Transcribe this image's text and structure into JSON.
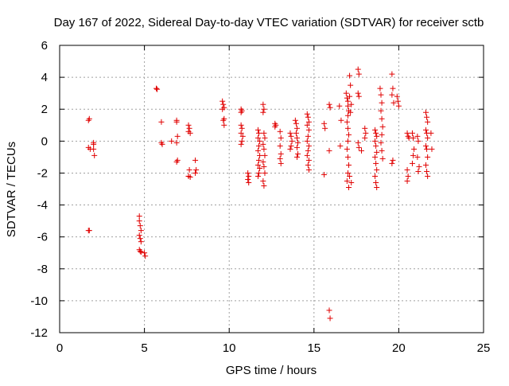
{
  "chart_data": {
    "type": "scatter",
    "title": "Day 167 of 2022, Sidereal Day-to-day VTEC variation (SDTVAR) for receiver sctb",
    "xlabel": "GPS time / hours",
    "ylabel": "SDTVAR / TECUs",
    "xlim": [
      0,
      25
    ],
    "ylim": [
      -12,
      6
    ],
    "xticks": [
      0,
      5,
      10,
      15,
      20,
      25
    ],
    "yticks": [
      -12,
      -10,
      -8,
      -6,
      -4,
      -2,
      0,
      2,
      4,
      6
    ],
    "xtick_labels": [
      "0",
      "5",
      "10",
      "15",
      "20",
      "25"
    ],
    "ytick_labels": [
      "-12",
      "-10",
      "-8",
      "-6",
      "-4",
      "-2",
      "0",
      "2",
      "4",
      "6"
    ],
    "grid": true,
    "marker": "+",
    "color": "#e00000",
    "series": [
      {
        "name": "SDTVAR",
        "points": [
          [
            1.7,
            1.3
          ],
          [
            1.75,
            1.4
          ],
          [
            1.7,
            -0.4
          ],
          [
            1.8,
            -0.5
          ],
          [
            1.75,
            -5.6
          ],
          [
            1.7,
            -5.6
          ],
          [
            2.0,
            -0.2
          ],
          [
            2.0,
            -0.5
          ],
          [
            2.05,
            -0.9
          ],
          [
            2.0,
            -0.1
          ],
          [
            4.7,
            -4.7
          ],
          [
            4.7,
            -5.0
          ],
          [
            4.75,
            -5.3
          ],
          [
            4.8,
            -5.6
          ],
          [
            4.7,
            -5.9
          ],
          [
            4.75,
            -6.1
          ],
          [
            4.8,
            -6.3
          ],
          [
            4.7,
            -6.8
          ],
          [
            4.75,
            -6.9
          ],
          [
            4.8,
            -6.95
          ],
          [
            5.0,
            -7.0
          ],
          [
            5.05,
            -7.2
          ],
          [
            5.7,
            3.3
          ],
          [
            5.75,
            3.25
          ],
          [
            6.0,
            1.2
          ],
          [
            6.0,
            -0.1
          ],
          [
            6.05,
            -0.2
          ],
          [
            6.6,
            0.0
          ],
          [
            6.9,
            1.2
          ],
          [
            6.9,
            1.3
          ],
          [
            6.95,
            0.3
          ],
          [
            6.9,
            -0.1
          ],
          [
            6.95,
            -1.2
          ],
          [
            6.9,
            -1.3
          ],
          [
            7.6,
            1.0
          ],
          [
            7.65,
            0.8
          ],
          [
            7.6,
            0.6
          ],
          [
            7.7,
            0.5
          ],
          [
            7.65,
            -1.8
          ],
          [
            7.6,
            -2.2
          ],
          [
            7.7,
            -2.25
          ],
          [
            7.6,
            -2.2
          ],
          [
            8.0,
            -1.2
          ],
          [
            8.05,
            -1.8
          ],
          [
            8.0,
            -2.0
          ],
          [
            9.6,
            2.5
          ],
          [
            9.65,
            2.3
          ],
          [
            9.7,
            2.1
          ],
          [
            9.6,
            2.0
          ],
          [
            9.7,
            1.4
          ],
          [
            9.65,
            1.3
          ],
          [
            9.7,
            1.0
          ],
          [
            10.7,
            2.0
          ],
          [
            10.75,
            1.9
          ],
          [
            10.7,
            1.8
          ],
          [
            10.7,
            1.0
          ],
          [
            10.75,
            0.8
          ],
          [
            10.7,
            0.5
          ],
          [
            10.8,
            0.3
          ],
          [
            10.75,
            0.0
          ],
          [
            10.7,
            -0.2
          ],
          [
            11.1,
            -2.0
          ],
          [
            11.15,
            -2.2
          ],
          [
            11.1,
            -2.4
          ],
          [
            11.15,
            -2.6
          ],
          [
            11.7,
            0.7
          ],
          [
            11.75,
            0.5
          ],
          [
            11.7,
            0.2
          ],
          [
            11.8,
            0.0
          ],
          [
            11.75,
            -0.3
          ],
          [
            11.7,
            -0.6
          ],
          [
            11.8,
            -0.9
          ],
          [
            11.75,
            -1.2
          ],
          [
            11.7,
            -1.5
          ],
          [
            11.8,
            -1.7
          ],
          [
            11.75,
            -2.0
          ],
          [
            11.7,
            -2.2
          ],
          [
            12.0,
            2.3
          ],
          [
            12.05,
            2.0
          ],
          [
            12.0,
            1.8
          ],
          [
            12.05,
            0.5
          ],
          [
            12.1,
            0.2
          ],
          [
            12.0,
            -0.2
          ],
          [
            12.05,
            -0.5
          ],
          [
            12.1,
            -0.9
          ],
          [
            12.0,
            -1.3
          ],
          [
            12.05,
            -1.6
          ],
          [
            12.1,
            -2.0
          ],
          [
            12.0,
            -2.5
          ],
          [
            12.05,
            -2.8
          ],
          [
            12.7,
            1.1
          ],
          [
            12.75,
            1.0
          ],
          [
            12.7,
            0.9
          ],
          [
            13.0,
            0.6
          ],
          [
            13.05,
            0.2
          ],
          [
            13.0,
            -0.3
          ],
          [
            13.05,
            -0.8
          ],
          [
            13.0,
            -1.1
          ],
          [
            13.05,
            -1.4
          ],
          [
            13.6,
            0.5
          ],
          [
            13.65,
            0.3
          ],
          [
            13.7,
            0.0
          ],
          [
            13.65,
            -0.3
          ],
          [
            13.6,
            -0.5
          ],
          [
            13.9,
            1.3
          ],
          [
            13.95,
            1.1
          ],
          [
            14.0,
            0.8
          ],
          [
            13.95,
            0.5
          ],
          [
            14.0,
            0.2
          ],
          [
            14.05,
            -0.1
          ],
          [
            14.0,
            -0.4
          ],
          [
            14.05,
            -0.8
          ],
          [
            14.0,
            -1.0
          ],
          [
            14.6,
            1.7
          ],
          [
            14.65,
            1.5
          ],
          [
            14.7,
            1.2
          ],
          [
            14.6,
            1.0
          ],
          [
            14.7,
            0.7
          ],
          [
            14.65,
            0.3
          ],
          [
            14.6,
            0.0
          ],
          [
            14.7,
            -0.3
          ],
          [
            14.65,
            -0.6
          ],
          [
            14.6,
            -0.9
          ],
          [
            14.7,
            -1.2
          ],
          [
            14.65,
            -1.5
          ],
          [
            14.7,
            -1.8
          ],
          [
            15.6,
            1.1
          ],
          [
            15.65,
            0.8
          ],
          [
            15.6,
            -2.1
          ],
          [
            15.9,
            2.3
          ],
          [
            15.95,
            2.1
          ],
          [
            15.9,
            -0.6
          ],
          [
            15.9,
            -10.6
          ],
          [
            15.95,
            -11.1
          ],
          [
            16.5,
            2.2
          ],
          [
            16.6,
            1.3
          ],
          [
            16.55,
            -0.3
          ],
          [
            16.9,
            3.0
          ],
          [
            16.95,
            2.7
          ],
          [
            17.0,
            2.5
          ],
          [
            17.0,
            2.2
          ],
          [
            17.05,
            1.9
          ],
          [
            17.0,
            1.6
          ],
          [
            16.95,
            1.2
          ],
          [
            17.0,
            0.8
          ],
          [
            17.05,
            0.4
          ],
          [
            17.0,
            0.0
          ],
          [
            16.95,
            -0.5
          ],
          [
            17.0,
            -1.0
          ],
          [
            17.05,
            -1.5
          ],
          [
            17.0,
            -2.0
          ],
          [
            16.95,
            -2.5
          ],
          [
            17.05,
            -2.9
          ],
          [
            17.1,
            4.1
          ],
          [
            17.15,
            3.5
          ],
          [
            17.1,
            2.8
          ],
          [
            17.2,
            2.3
          ],
          [
            17.15,
            1.8
          ],
          [
            17.1,
            -2.2
          ],
          [
            17.2,
            -2.6
          ],
          [
            17.6,
            4.5
          ],
          [
            17.65,
            4.2
          ],
          [
            17.6,
            3.0
          ],
          [
            17.65,
            2.8
          ],
          [
            17.6,
            -0.1
          ],
          [
            17.65,
            -0.4
          ],
          [
            17.8,
            -0.6
          ],
          [
            18.0,
            0.8
          ],
          [
            18.05,
            0.5
          ],
          [
            18.0,
            0.2
          ],
          [
            18.6,
            0.7
          ],
          [
            18.65,
            0.5
          ],
          [
            18.7,
            0.3
          ],
          [
            18.6,
            0.0
          ],
          [
            18.65,
            -0.3
          ],
          [
            18.7,
            -0.7
          ],
          [
            18.6,
            -1.0
          ],
          [
            18.65,
            -1.4
          ],
          [
            18.7,
            -1.8
          ],
          [
            18.6,
            -2.2
          ],
          [
            18.65,
            -2.6
          ],
          [
            18.7,
            -2.9
          ],
          [
            18.9,
            3.3
          ],
          [
            18.95,
            2.9
          ],
          [
            19.0,
            2.4
          ],
          [
            18.95,
            1.9
          ],
          [
            19.0,
            1.4
          ],
          [
            19.05,
            0.9
          ],
          [
            19.0,
            0.4
          ],
          [
            18.95,
            -0.1
          ],
          [
            19.0,
            -0.6
          ],
          [
            19.05,
            -1.1
          ],
          [
            19.6,
            4.2
          ],
          [
            19.65,
            3.3
          ],
          [
            19.6,
            2.9
          ],
          [
            19.7,
            2.4
          ],
          [
            19.65,
            -1.2
          ],
          [
            19.6,
            -1.4
          ],
          [
            19.9,
            2.8
          ],
          [
            19.95,
            2.5
          ],
          [
            20.0,
            2.2
          ],
          [
            20.5,
            0.5
          ],
          [
            20.55,
            0.3
          ],
          [
            20.6,
            0.2
          ],
          [
            20.5,
            -1.8
          ],
          [
            20.55,
            -2.2
          ],
          [
            20.5,
            -2.5
          ],
          [
            20.8,
            0.5
          ],
          [
            20.85,
            0.2
          ],
          [
            20.9,
            -0.5
          ],
          [
            20.85,
            -0.9
          ],
          [
            20.8,
            -1.4
          ],
          [
            21.1,
            0.3
          ],
          [
            21.15,
            0.0
          ],
          [
            21.1,
            -1.0
          ],
          [
            21.2,
            -1.6
          ],
          [
            21.15,
            -1.9
          ],
          [
            21.6,
            1.8
          ],
          [
            21.65,
            1.5
          ],
          [
            21.7,
            1.2
          ],
          [
            21.6,
            0.7
          ],
          [
            21.65,
            0.5
          ],
          [
            21.7,
            0.2
          ],
          [
            21.6,
            -0.3
          ],
          [
            21.65,
            -0.5
          ],
          [
            21.7,
            -1.0
          ],
          [
            21.6,
            -1.5
          ],
          [
            21.65,
            -1.9
          ],
          [
            21.7,
            -2.2
          ],
          [
            21.9,
            0.5
          ],
          [
            21.95,
            -0.5
          ]
        ]
      }
    ]
  }
}
